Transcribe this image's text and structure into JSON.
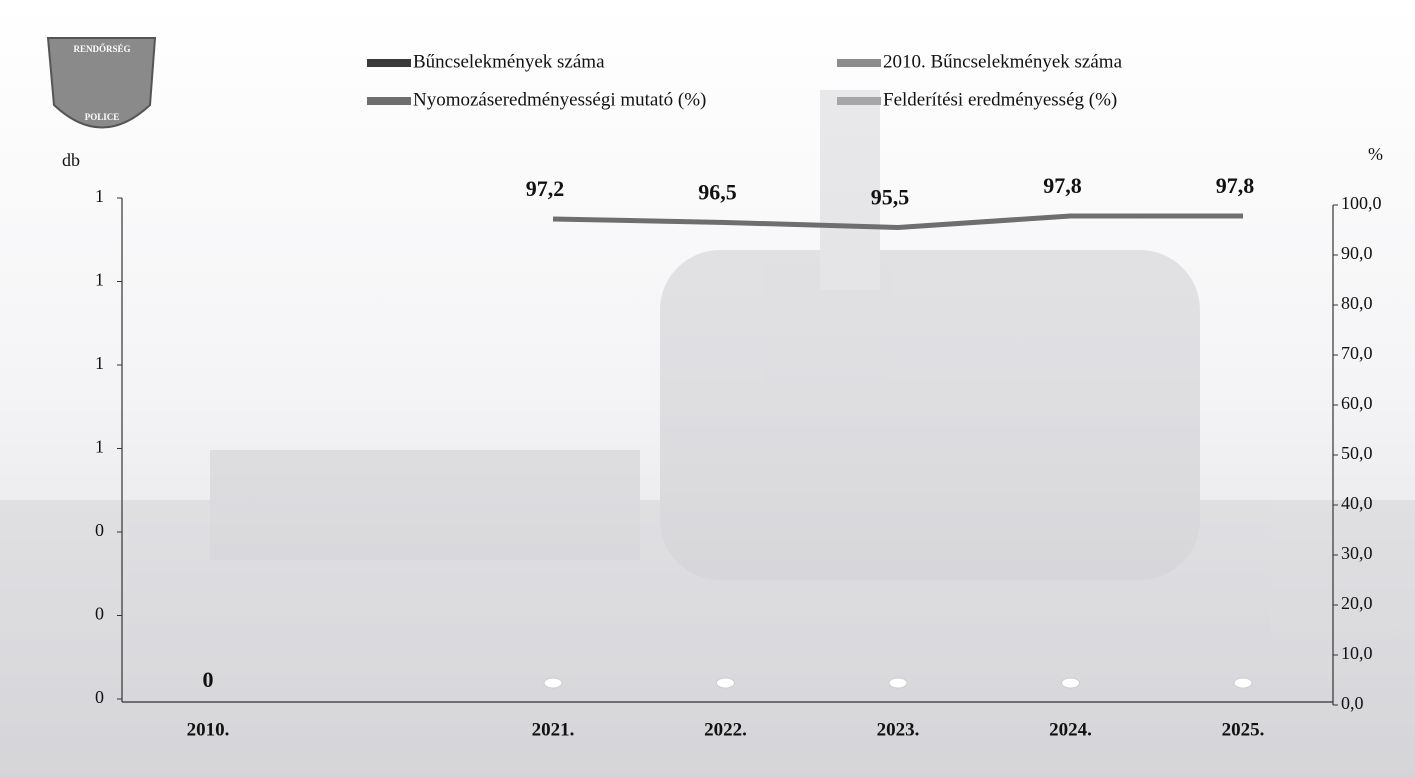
{
  "logo": {
    "top_text": "RENDŐRSÉG",
    "bottom_text": "POLICE"
  },
  "chart_data": {
    "type": "bar",
    "y_label": "db",
    "y2_label": "%",
    "categories": [
      "2010.",
      null,
      "2021.",
      "2022.",
      "2023.",
      "2024.",
      "2025."
    ],
    "ylim": [
      0,
      1.2
    ],
    "yticks": [
      {
        "value": 0,
        "label": "0"
      },
      {
        "value": 0.2,
        "label": "0"
      },
      {
        "value": 0.4,
        "label": "0"
      },
      {
        "value": 0.6,
        "label": "1"
      },
      {
        "value": 0.8,
        "label": "1"
      },
      {
        "value": 1.0,
        "label": "1"
      },
      {
        "value": 1.2,
        "label": "1"
      }
    ],
    "y2lim": [
      0,
      100
    ],
    "y2ticks": [
      {
        "value": 0,
        "label": "0,0"
      },
      {
        "value": 10,
        "label": "10,0"
      },
      {
        "value": 20,
        "label": "20,0"
      },
      {
        "value": 30,
        "label": "30,0"
      },
      {
        "value": 40,
        "label": "40,0"
      },
      {
        "value": 50,
        "label": "50,0"
      },
      {
        "value": 60,
        "label": "60,0"
      },
      {
        "value": 70,
        "label": "70,0"
      },
      {
        "value": 80,
        "label": "80,0"
      },
      {
        "value": 90,
        "label": "90,0"
      },
      {
        "value": 100,
        "label": "100,0"
      }
    ],
    "series": [
      {
        "name": "Bűncselekmények száma",
        "type": "bar",
        "color": "#3a3a3a",
        "values": [
          null,
          null,
          0,
          0,
          0,
          0,
          0
        ]
      },
      {
        "name": "2010. Bűncselekmények száma",
        "type": "bar",
        "color": "#8c8c8c",
        "values": [
          0,
          null,
          null,
          null,
          null,
          null,
          null
        ]
      },
      {
        "name": "Nyomozáseredményességi mutató (%)",
        "type": "line",
        "axis": "y2",
        "color": "#6e6e6e",
        "values": [
          null,
          null,
          97.2,
          96.5,
          95.5,
          97.8,
          97.8
        ],
        "value_labels": [
          null,
          null,
          "97,2",
          "96,5",
          "95,5",
          "97,8",
          "97,8"
        ]
      },
      {
        "name": "Felderítési eredményesség (%)",
        "type": "line",
        "axis": "y2",
        "color": "#a6a6a6",
        "values": [
          null,
          null,
          null,
          null,
          null,
          null,
          null
        ]
      }
    ]
  }
}
